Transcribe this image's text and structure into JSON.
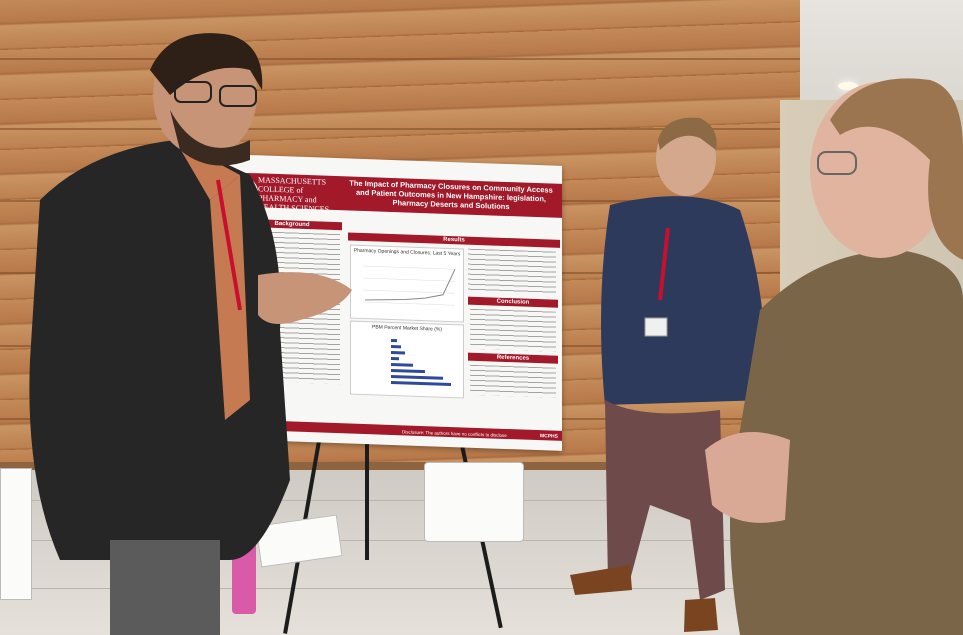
{
  "poster": {
    "school": "MASSACHUSETTS COLLEGE of PHARMACY and HEALTH SCIENCES",
    "title": "The Impact of Pharmacy Closures on Community Access and Patient Outcomes in New Hampshire: legislation, Pharmacy Deserts and Solutions",
    "sections": {
      "background": "Background",
      "results": "Results",
      "conclusion": "Conclusion",
      "references": "References"
    },
    "chart1_title": "Pharmacy Openings and Closures: Last 5 Years",
    "chart2_title": "PBM Percent Market Share (%)",
    "footer_badge": "MCPHS",
    "disclosure": "Disclosure: The authors have no conflicts to disclose"
  },
  "colors": {
    "poster_red": "#a2192a",
    "wood": "#b8794a",
    "lanyard": "#c8102e"
  }
}
